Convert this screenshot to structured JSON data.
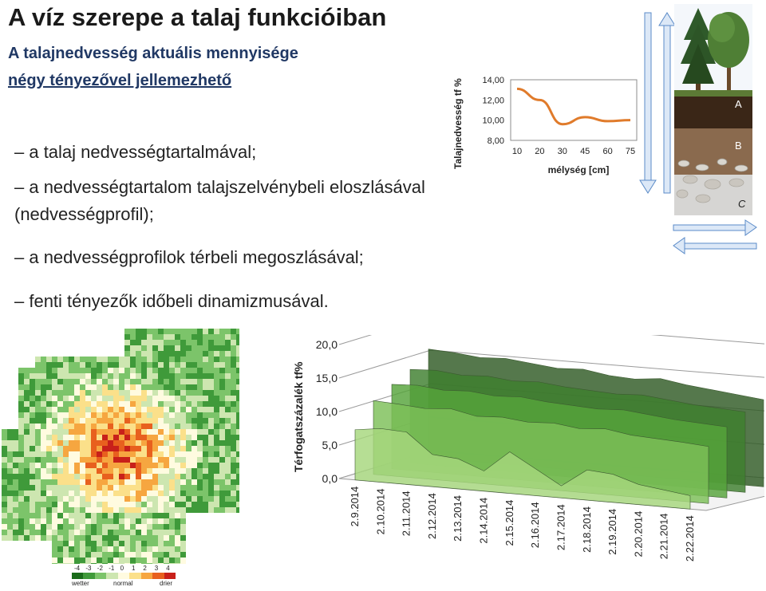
{
  "title": "A víz szerepe a talaj funkcióiban",
  "subtitle_line1": "A talajnedvesség aktuális mennyisége",
  "subtitle_line2": "négy tényezővel jellemezhető",
  "bullets": [
    "– a talaj nedvességtartalmával;",
    "– a nedvességtartalom talajszelvénybeli eloszlásával",
    "(nedvességprofil);",
    "– a nedvességprofilok térbeli megoszlásával;",
    "– fenti tényezők időbeli dinamizmusával."
  ],
  "soil_labels": {
    "a": "A",
    "b": "B",
    "c": "C"
  },
  "map_legend": {
    "ticks": [
      "-4",
      "-3",
      "-2",
      "-1",
      "0",
      "1",
      "2",
      "3",
      "4"
    ],
    "labels": [
      "wetter",
      "normal",
      "drier"
    ],
    "colors": [
      "#1a6b1a",
      "#3f9a3a",
      "#7cc46a",
      "#cde6b0",
      "#fffbe0",
      "#fbe08a",
      "#f6a640",
      "#e8601e",
      "#c8201a"
    ]
  },
  "chart_data": [
    {
      "type": "line",
      "ylabel": "Talajnedvesség tf %",
      "xlabel": "mélység [cm]",
      "categories": [
        "10",
        "20",
        "30",
        "45",
        "60",
        "75"
      ],
      "yticks": [
        "14,00",
        "12,00",
        "10,00",
        "8,00"
      ],
      "ylim": [
        8,
        14
      ],
      "values": [
        13.1,
        12.0,
        9.6,
        10.3,
        9.9,
        10.0
      ],
      "color": "#e07b2b",
      "grid": false
    },
    {
      "type": "area",
      "ylabel": "Térfogatszázalék tf%",
      "yticks": [
        "20,0",
        "15,0",
        "10,0",
        "5,0",
        "0,0"
      ],
      "ylim": [
        0,
        20
      ],
      "categories": [
        "2.9.2014",
        "2.10.2014",
        "2.11.2014",
        "2.12.2014",
        "2.13.2014",
        "2.14.2014",
        "2.15.2014",
        "2.16.2014",
        "2.17.2014",
        "2.18.2014",
        "2.19.2014",
        "2.20.2014",
        "2.21.2014",
        "2.22.2014"
      ],
      "series": [
        {
          "values": [
            7.5,
            8.0,
            7.8,
            4.8,
            4.5,
            3.0,
            6.2,
            4.0,
            1.8,
            4.5,
            4.2,
            3.0,
            2.5,
            2.0
          ],
          "color": "#a6d77d"
        },
        {
          "values": [
            11.0,
            10.8,
            10.5,
            10.8,
            10.0,
            10.2,
            9.8,
            10.0,
            9.5,
            9.8,
            9.2,
            9.0,
            8.8,
            8.5
          ],
          "color": "#7cbf58"
        },
        {
          "values": [
            12.6,
            12.8,
            12.4,
            12.6,
            12.2,
            12.4,
            12.0,
            11.8,
            11.6,
            11.8,
            11.4,
            11.0,
            10.8,
            10.6
          ],
          "color": "#56a33a"
        },
        {
          "values": [
            14.0,
            14.2,
            13.8,
            14.0,
            13.6,
            13.8,
            13.4,
            13.2,
            13.0,
            13.2,
            12.8,
            12.4,
            12.2,
            12.0
          ],
          "color": "#3e7f2e"
        },
        {
          "values": [
            16.2,
            16.0,
            15.6,
            15.8,
            15.4,
            15.0,
            15.2,
            14.6,
            14.4,
            14.8,
            14.2,
            13.8,
            13.4,
            13.0
          ],
          "color": "#2f5a25"
        }
      ]
    }
  ]
}
